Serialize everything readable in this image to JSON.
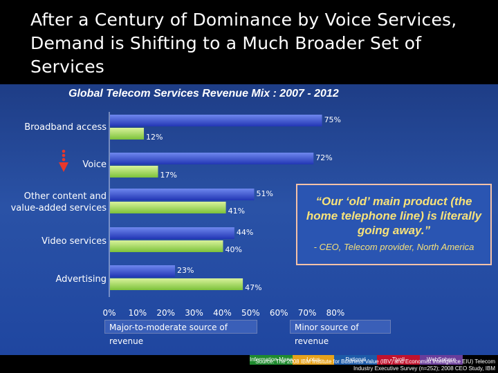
{
  "slide": {
    "title": "After a Century of Dominance by Voice Services, Demand is Shifting to a Much Broader Set of Services"
  },
  "chart_data": {
    "type": "bar",
    "orientation": "horizontal",
    "title": "Global Telecom Services Revenue  Mix : 2007 - 2012",
    "categories": [
      "Broadband access",
      "Voice",
      "Other content and value-added services",
      "Video services",
      "Advertising"
    ],
    "series": [
      {
        "name": "Major-to-moderate source of revenue",
        "color": "#2f43c8",
        "values": [
          75,
          72,
          51,
          44,
          23
        ]
      },
      {
        "name": "Minor source of revenue",
        "color": "#9bd64a",
        "values": [
          12,
          17,
          41,
          40,
          47
        ]
      }
    ],
    "value_labels": {
      "major": [
        "75%",
        "72%",
        "51%",
        "44%",
        "23%"
      ],
      "minor": [
        "12%",
        "17%",
        "41%",
        "40%",
        "47%"
      ]
    },
    "xlim": [
      0,
      80
    ],
    "xticks": [
      "0%",
      "10%",
      "20%",
      "30%",
      "40%",
      "50%",
      "60%",
      "70%",
      "80%"
    ],
    "legend_position": "bottom"
  },
  "quote": {
    "text": "“Our ‘old’ main product (the home telephone line) is literally going away.”",
    "attribution": "- CEO, Telecom provider, North America"
  },
  "footer": {
    "tabs": [
      "Information Management",
      "Lotus",
      "Rational",
      "Tivoli",
      "WebSphere"
    ],
    "source": "Source: The 2008 IBM Institute for Business Value (IBV) and Economist Intelligence EIU) Telecom Industry Executive Survey (n=252); 2008 CEO Study, IBM"
  },
  "colors": {
    "major_bar": "#2f43c8",
    "minor_bar": "#9bd64a",
    "arrow": "#e8372a",
    "quote_text": "#f7e27a"
  }
}
